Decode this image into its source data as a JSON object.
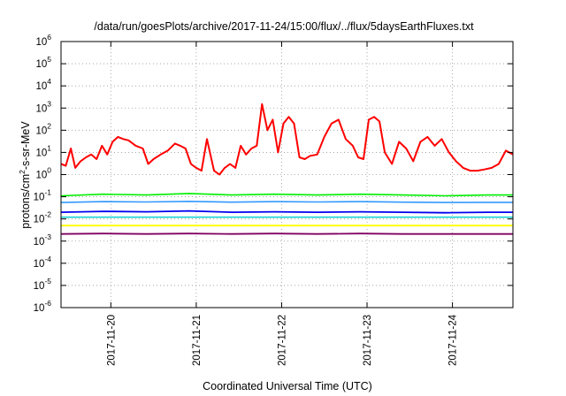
{
  "chart_data": {
    "type": "line",
    "title": "/data/run/goesPlots/archive/2017-11-24/15:00/flux/../flux/5daysEarthFluxes.txt",
    "xlabel": "Coordinated Universal Time (UTC)",
    "ylabel": "protons/cm²-s-sr-MeV",
    "ylabel_parts": {
      "pre": "protons/cm",
      "sup": "2",
      "post": "-s-sr-MeV"
    },
    "yscale": "log",
    "ylim": [
      1e-06,
      1000000.0
    ],
    "xlim": [
      "2017-11-19T10:00",
      "2017-11-24T17:00"
    ],
    "grid": true,
    "y_ticks": [
      {
        "base": "10",
        "exp": "-6",
        "value": 1e-06
      },
      {
        "base": "10",
        "exp": "-5",
        "value": 1e-05
      },
      {
        "base": "10",
        "exp": "-4",
        "value": 0.0001
      },
      {
        "base": "10",
        "exp": "-3",
        "value": 0.001
      },
      {
        "base": "10",
        "exp": "-2",
        "value": 0.01
      },
      {
        "base": "10",
        "exp": "-1",
        "value": 0.1
      },
      {
        "base": "10",
        "exp": "0",
        "value": 1
      },
      {
        "base": "10",
        "exp": "1",
        "value": 10
      },
      {
        "base": "10",
        "exp": "2",
        "value": 100
      },
      {
        "base": "10",
        "exp": "3",
        "value": 1000
      },
      {
        "base": "10",
        "exp": "4",
        "value": 10000
      },
      {
        "base": "10",
        "exp": "5",
        "value": 100000
      },
      {
        "base": "10",
        "exp": "6",
        "value": 1000000
      }
    ],
    "x_ticks": [
      {
        "label": "2017-11-20",
        "value": "2017-11-20T00:00"
      },
      {
        "label": "2017-11-21",
        "value": "2017-11-21T00:00"
      },
      {
        "label": "2017-11-22",
        "value": "2017-11-22T00:00"
      },
      {
        "label": "2017-11-23",
        "value": "2017-11-23T00:00"
      },
      {
        "label": "2017-11-24",
        "value": "2017-11-24T00:00"
      }
    ],
    "series": [
      {
        "color": "#ff0000",
        "width": 2,
        "x": [
          "2017-11-19T10:00",
          "2017-11-19T11:20",
          "2017-11-19T12:45",
          "2017-11-19T14:00",
          "2017-11-19T15:30",
          "2017-11-19T17:00",
          "2017-11-19T18:30",
          "2017-11-19T20:00",
          "2017-11-19T21:30",
          "2017-11-19T23:00",
          "2017-11-20T00:30",
          "2017-11-20T02:00",
          "2017-11-20T03:30",
          "2017-11-20T05:00",
          "2017-11-20T07:00",
          "2017-11-20T09:00",
          "2017-11-20T10:30",
          "2017-11-20T12:00",
          "2017-11-20T14:00",
          "2017-11-20T16:00",
          "2017-11-20T18:00",
          "2017-11-20T19:30",
          "2017-11-20T21:00",
          "2017-11-20T22:30",
          "2017-11-21T00:00",
          "2017-11-21T01:30",
          "2017-11-21T03:00",
          "2017-11-21T05:00",
          "2017-11-21T06:30",
          "2017-11-21T08:00",
          "2017-11-21T09:30",
          "2017-11-21T11:00",
          "2017-11-21T12:30",
          "2017-11-21T14:00",
          "2017-11-21T15:30",
          "2017-11-21T17:00",
          "2017-11-21T18:30",
          "2017-11-21T20:00",
          "2017-11-21T21:30",
          "2017-11-21T23:00",
          "2017-11-22T00:30",
          "2017-11-22T02:00",
          "2017-11-22T03:30",
          "2017-11-22T05:00",
          "2017-11-22T06:30",
          "2017-11-22T08:00",
          "2017-11-22T10:00",
          "2017-11-22T12:00",
          "2017-11-22T14:00",
          "2017-11-22T16:00",
          "2017-11-22T18:00",
          "2017-11-22T20:00",
          "2017-11-22T21:30",
          "2017-11-22T23:00",
          "2017-11-23T00:30",
          "2017-11-23T02:00",
          "2017-11-23T03:30",
          "2017-11-23T05:00",
          "2017-11-23T07:00",
          "2017-11-23T09:00",
          "2017-11-23T11:00",
          "2017-11-23T13:00",
          "2017-11-23T15:00",
          "2017-11-23T17:00",
          "2017-11-23T19:00",
          "2017-11-23T21:00",
          "2017-11-23T23:00",
          "2017-11-24T01:00",
          "2017-11-24T03:00",
          "2017-11-24T05:00",
          "2017-11-24T07:00",
          "2017-11-24T09:00",
          "2017-11-24T11:00",
          "2017-11-24T13:00",
          "2017-11-24T15:00",
          "2017-11-24T17:00"
        ],
        "y": [
          3,
          2.5,
          15,
          2,
          4,
          6,
          8,
          5,
          20,
          8,
          30,
          50,
          40,
          35,
          20,
          15,
          3,
          5,
          8,
          12,
          25,
          20,
          15,
          3,
          2,
          1.5,
          40,
          1.5,
          1,
          2,
          3,
          2,
          20,
          8,
          15,
          20,
          1500,
          100,
          300,
          10,
          200,
          400,
          200,
          6,
          5,
          7,
          8,
          50,
          200,
          300,
          40,
          20,
          6,
          5,
          300,
          400,
          250,
          10,
          3,
          30,
          15,
          4,
          30,
          50,
          20,
          40,
          10,
          4,
          2,
          1.5,
          1.5,
          1.7,
          2,
          3,
          12,
          8
        ]
      },
      {
        "color": "#00ee00",
        "width": 1.6,
        "x": [
          "2017-11-19T10:00",
          "2017-11-19T22:00",
          "2017-11-20T10:00",
          "2017-11-20T22:00",
          "2017-11-21T10:00",
          "2017-11-21T22:00",
          "2017-11-22T10:00",
          "2017-11-22T22:00",
          "2017-11-23T10:00",
          "2017-11-23T22:00",
          "2017-11-24T10:00",
          "2017-11-24T17:00"
        ],
        "y": [
          0.11,
          0.13,
          0.12,
          0.14,
          0.12,
          0.13,
          0.12,
          0.13,
          0.12,
          0.11,
          0.12,
          0.12
        ]
      },
      {
        "color": "#3399ff",
        "width": 1.6,
        "x": [
          "2017-11-19T10:00",
          "2017-11-19T22:00",
          "2017-11-20T10:00",
          "2017-11-20T22:00",
          "2017-11-21T10:00",
          "2017-11-21T22:00",
          "2017-11-22T10:00",
          "2017-11-22T22:00",
          "2017-11-23T10:00",
          "2017-11-23T22:00",
          "2017-11-24T10:00",
          "2017-11-24T17:00"
        ],
        "y": [
          0.055,
          0.06,
          0.058,
          0.062,
          0.057,
          0.06,
          0.058,
          0.06,
          0.057,
          0.055,
          0.056,
          0.056
        ]
      },
      {
        "color": "#0000ee",
        "width": 1.8,
        "x": [
          "2017-11-19T10:00",
          "2017-11-19T22:00",
          "2017-11-20T10:00",
          "2017-11-20T22:00",
          "2017-11-21T10:00",
          "2017-11-21T22:00",
          "2017-11-22T10:00",
          "2017-11-22T22:00",
          "2017-11-23T10:00",
          "2017-11-23T22:00",
          "2017-11-24T10:00",
          "2017-11-24T17:00"
        ],
        "y": [
          0.02,
          0.022,
          0.021,
          0.023,
          0.02,
          0.021,
          0.02,
          0.021,
          0.02,
          0.019,
          0.02,
          0.02
        ]
      },
      {
        "color": "#00cccc",
        "width": 1.4,
        "x": [
          "2017-11-19T10:00",
          "2017-11-19T22:00",
          "2017-11-20T10:00",
          "2017-11-20T22:00",
          "2017-11-21T10:00",
          "2017-11-21T22:00",
          "2017-11-22T10:00",
          "2017-11-22T22:00",
          "2017-11-23T10:00",
          "2017-11-23T22:00",
          "2017-11-24T10:00",
          "2017-11-24T17:00"
        ],
        "y": [
          0.012,
          0.012,
          0.012,
          0.012,
          0.012,
          0.012,
          0.012,
          0.012,
          0.012,
          0.012,
          0.012,
          0.012
        ]
      },
      {
        "color": "#ffff00",
        "width": 1.8,
        "x": [
          "2017-11-19T10:00",
          "2017-11-19T22:00",
          "2017-11-20T10:00",
          "2017-11-20T22:00",
          "2017-11-21T10:00",
          "2017-11-21T22:00",
          "2017-11-22T10:00",
          "2017-11-22T22:00",
          "2017-11-23T10:00",
          "2017-11-23T22:00",
          "2017-11-24T10:00",
          "2017-11-24T17:00"
        ],
        "y": [
          0.005,
          0.005,
          0.005,
          0.005,
          0.005,
          0.005,
          0.005,
          0.005,
          0.005,
          0.005,
          0.005,
          0.005
        ]
      },
      {
        "color": "#800060",
        "width": 1.8,
        "x": [
          "2017-11-19T10:00",
          "2017-11-19T22:00",
          "2017-11-20T10:00",
          "2017-11-20T22:00",
          "2017-11-21T10:00",
          "2017-11-21T22:00",
          "2017-11-22T10:00",
          "2017-11-22T22:00",
          "2017-11-23T10:00",
          "2017-11-23T22:00",
          "2017-11-24T10:00",
          "2017-11-24T17:00"
        ],
        "y": [
          0.0021,
          0.0022,
          0.0021,
          0.0022,
          0.0021,
          0.0022,
          0.0021,
          0.0022,
          0.0021,
          0.0021,
          0.0021,
          0.0021
        ]
      }
    ]
  }
}
